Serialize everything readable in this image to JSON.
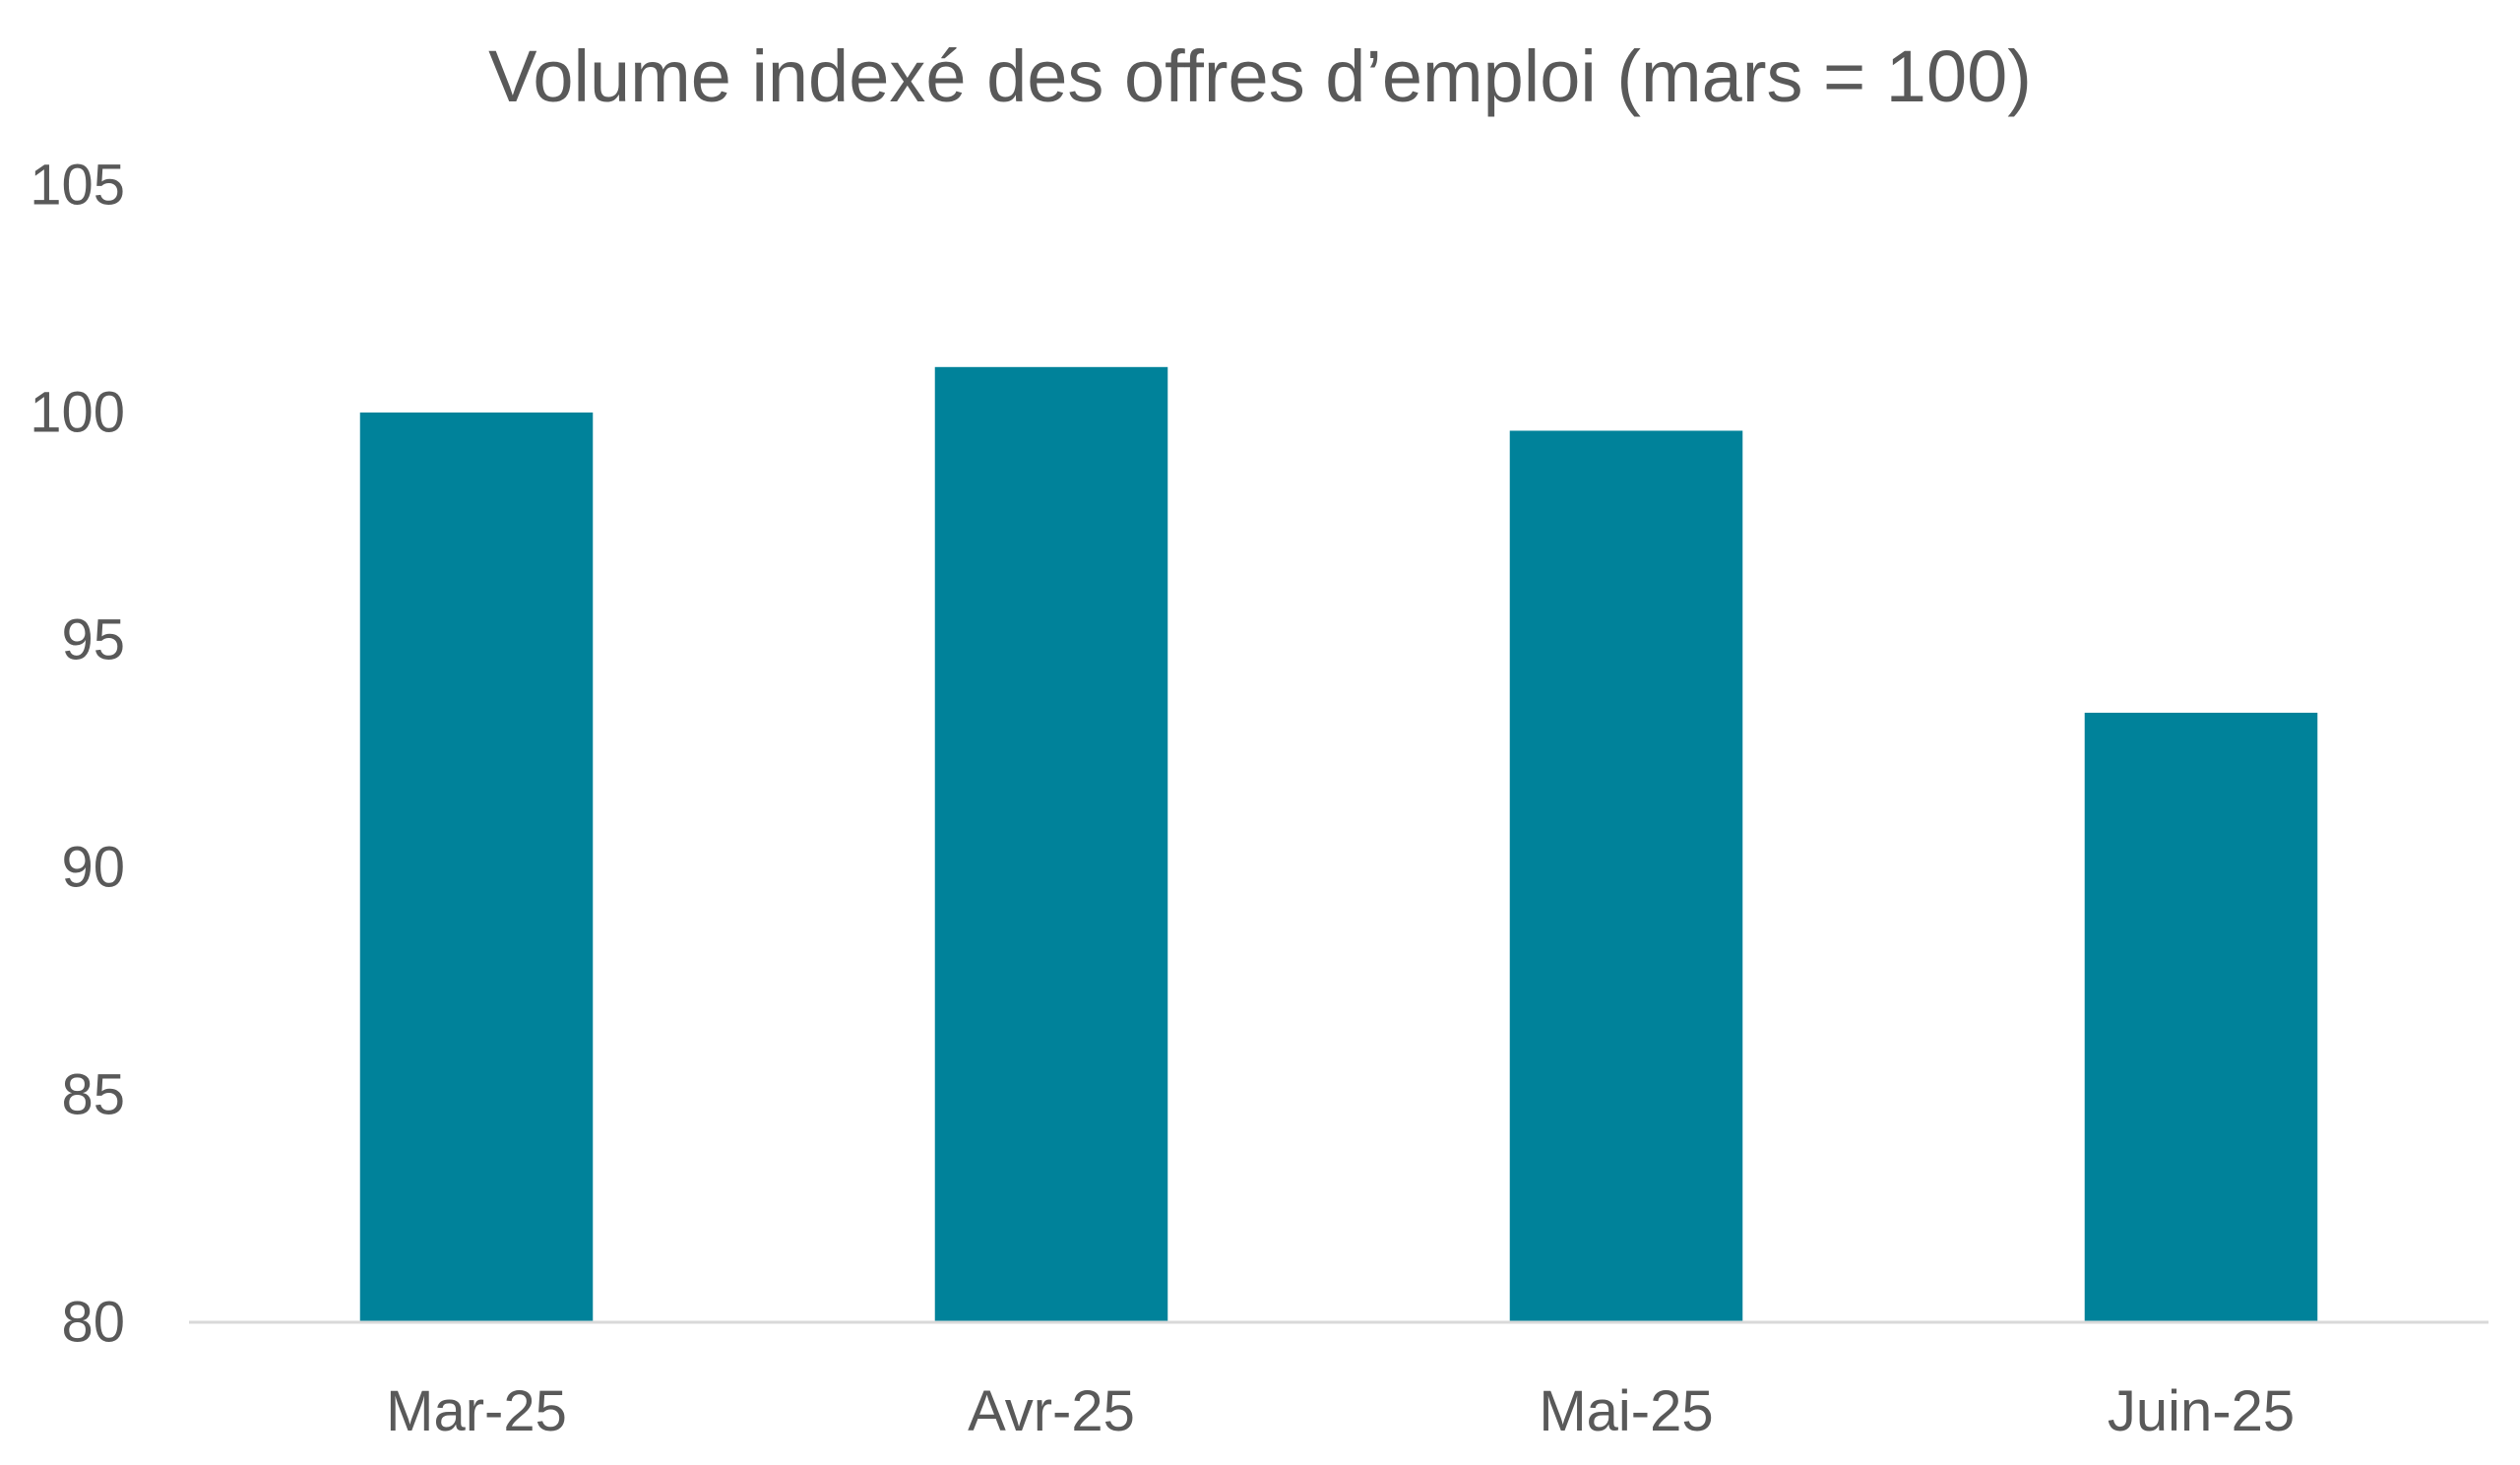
{
  "chart_data": {
    "type": "bar",
    "title": "Volume indexé des offres d’emploi (mars = 100)",
    "xlabel": "",
    "ylabel": "",
    "categories": [
      "Mar-25",
      "Avr-25",
      "Mai-25",
      "Juin-25"
    ],
    "values": [
      100.0,
      101.0,
      99.6,
      93.4
    ],
    "ylim": [
      80,
      105
    ],
    "yticks": [
      "80",
      "85",
      "90",
      "95",
      "100",
      "105"
    ],
    "grid": false,
    "legend": "none",
    "colors": {
      "bar": "#00829A",
      "axis": "#D9D9D9",
      "text": "#595959"
    }
  }
}
